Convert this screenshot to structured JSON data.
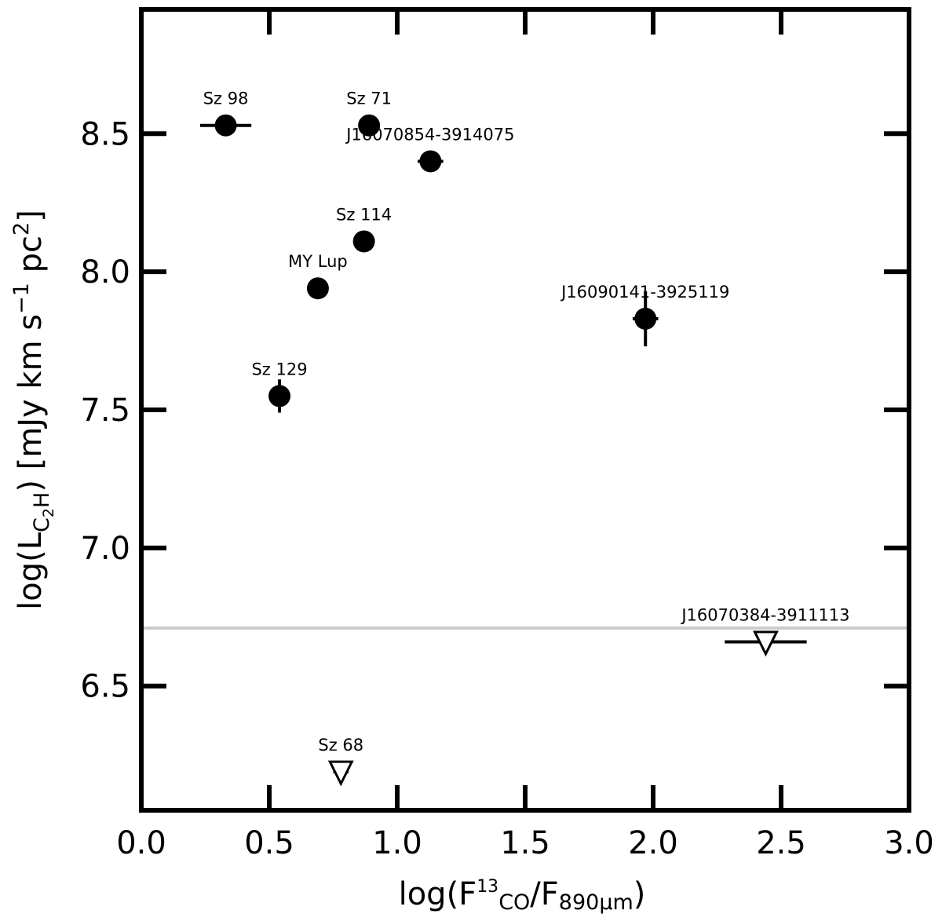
{
  "chart_data": {
    "type": "scatter",
    "xlabel": {
      "main": "log(F",
      "sub1": "13",
      "mid": "CO",
      "sep": "/F",
      "sub2": "890μm",
      "close": ")"
    },
    "ylabel": {
      "main": "log(L",
      "sub": "C",
      "subsub": "2",
      "subend": "H",
      "rest": ") [mJy km s",
      "sup1": "−1",
      "pc": " pc",
      "sup2": "2",
      "close": "]"
    },
    "xlim": [
      0.0,
      3.0
    ],
    "ylim": [
      6.05,
      8.95
    ],
    "x_ticks": [
      0.0,
      0.5,
      1.0,
      1.5,
      2.0,
      2.5,
      3.0
    ],
    "x_tick_labels": [
      "0.0",
      "0.5",
      "1.0",
      "1.5",
      "2.0",
      "2.5",
      "3.0"
    ],
    "y_ticks": [
      6.5,
      7.0,
      7.5,
      8.0,
      8.5
    ],
    "y_tick_labels": [
      "6.5",
      "7.0",
      "7.5",
      "8.0",
      "8.5"
    ],
    "detections": [
      {
        "name": "Sz 98",
        "x": 0.33,
        "y": 8.53,
        "xerr": 0.1,
        "yerr": 0.0
      },
      {
        "name": "Sz 71",
        "x": 0.89,
        "y": 8.53,
        "xerr": 0.0,
        "yerr": 0.0
      },
      {
        "name": "J16070854-3914075",
        "x": 1.13,
        "y": 8.4,
        "xerr": 0.05,
        "yerr": 0.0
      },
      {
        "name": "Sz 114",
        "x": 0.87,
        "y": 8.11,
        "xerr": 0.0,
        "yerr": 0.0
      },
      {
        "name": "MY Lup",
        "x": 0.69,
        "y": 7.94,
        "xerr": 0.0,
        "yerr": 0.0
      },
      {
        "name": "J16090141-3925119",
        "x": 1.97,
        "y": 7.83,
        "xerr": 0.05,
        "yerr": 0.1
      },
      {
        "name": "Sz 129",
        "x": 0.54,
        "y": 7.55,
        "xerr": 0.04,
        "yerr": 0.06
      }
    ],
    "upper_limits": [
      {
        "name": "J16070384-3911113",
        "x": 2.44,
        "y": 6.66,
        "xerr": 0.16
      },
      {
        "name": "Sz 68",
        "x": 0.78,
        "y": 6.19,
        "xerr": 0.03
      }
    ],
    "reference_line_y": 6.71,
    "colors": {
      "marker": "#000000",
      "reference_line": "#cccccc",
      "open_marker_fill": "#ffffff"
    },
    "grid": false,
    "legend": "none"
  }
}
